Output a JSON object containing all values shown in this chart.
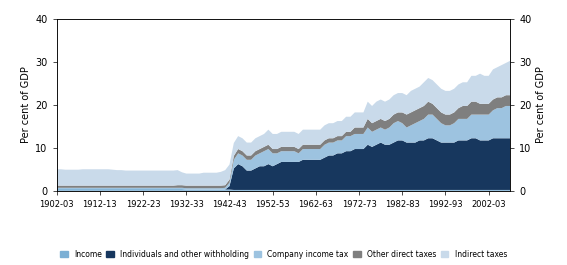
{
  "years": [
    1902,
    1903,
    1904,
    1905,
    1906,
    1907,
    1908,
    1909,
    1910,
    1911,
    1912,
    1913,
    1914,
    1915,
    1916,
    1917,
    1918,
    1919,
    1920,
    1921,
    1922,
    1923,
    1924,
    1925,
    1926,
    1927,
    1928,
    1929,
    1930,
    1931,
    1932,
    1933,
    1934,
    1935,
    1936,
    1937,
    1938,
    1939,
    1940,
    1941,
    1942,
    1943,
    1944,
    1945,
    1946,
    1947,
    1948,
    1949,
    1950,
    1951,
    1952,
    1953,
    1954,
    1955,
    1956,
    1957,
    1958,
    1959,
    1960,
    1961,
    1962,
    1963,
    1964,
    1965,
    1966,
    1967,
    1968,
    1969,
    1970,
    1971,
    1972,
    1973,
    1974,
    1975,
    1976,
    1977,
    1978,
    1979,
    1980,
    1981,
    1982,
    1983,
    1984,
    1985,
    1986,
    1987,
    1988,
    1989,
    1990,
    1991,
    1992,
    1993,
    1994,
    1995,
    1996,
    1997,
    1998,
    1999,
    2000,
    2001,
    2002,
    2003,
    2004,
    2005,
    2006,
    2007
  ],
  "income": [
    0.4,
    0.4,
    0.4,
    0.4,
    0.4,
    0.4,
    0.4,
    0.4,
    0.4,
    0.4,
    0.4,
    0.4,
    0.4,
    0.4,
    0.4,
    0.4,
    0.4,
    0.4,
    0.4,
    0.4,
    0.4,
    0.4,
    0.4,
    0.4,
    0.4,
    0.4,
    0.4,
    0.4,
    0.4,
    0.4,
    0.3,
    0.3,
    0.3,
    0.3,
    0.3,
    0.3,
    0.3,
    0.3,
    0.3,
    0.3,
    0.3,
    0.2,
    0.2,
    0.2,
    0.2,
    0.2,
    0.2,
    0.2,
    0.2,
    0.2,
    0.2,
    0.2,
    0.2,
    0.2,
    0.2,
    0.2,
    0.2,
    0.2,
    0.2,
    0.2,
    0.2,
    0.2,
    0.2,
    0.2,
    0.2,
    0.2,
    0.2,
    0.2,
    0.2,
    0.2,
    0.2,
    0.2,
    0.2,
    0.2,
    0.2,
    0.2,
    0.2,
    0.2,
    0.2,
    0.2,
    0.2,
    0.2,
    0.2,
    0.2,
    0.2,
    0.2,
    0.2,
    0.2,
    0.2,
    0.2,
    0.2,
    0.2,
    0.2,
    0.2,
    0.2,
    0.2,
    0.2,
    0.2,
    0.2,
    0.2,
    0.2,
    0.2,
    0.2,
    0.2,
    0.2,
    0.2
  ],
  "individuals": [
    0.0,
    0.0,
    0.0,
    0.0,
    0.0,
    0.0,
    0.0,
    0.0,
    0.0,
    0.0,
    0.0,
    0.0,
    0.0,
    0.0,
    0.0,
    0.0,
    0.0,
    0.0,
    0.0,
    0.0,
    0.0,
    0.0,
    0.0,
    0.0,
    0.0,
    0.0,
    0.0,
    0.0,
    0.0,
    0.0,
    0.0,
    0.0,
    0.0,
    0.0,
    0.0,
    0.0,
    0.0,
    0.0,
    0.0,
    0.0,
    0.8,
    5.0,
    6.0,
    5.5,
    4.5,
    4.5,
    5.0,
    5.5,
    5.5,
    6.0,
    5.5,
    6.0,
    6.5,
    6.5,
    6.5,
    6.5,
    6.5,
    7.0,
    7.0,
    7.0,
    7.0,
    7.0,
    7.5,
    8.0,
    8.0,
    8.5,
    8.5,
    9.0,
    9.0,
    9.5,
    9.5,
    9.5,
    10.5,
    10.0,
    10.5,
    11.0,
    10.5,
    10.5,
    11.0,
    11.5,
    11.5,
    11.0,
    11.0,
    11.0,
    11.5,
    11.5,
    12.0,
    12.0,
    11.5,
    11.0,
    11.0,
    11.0,
    11.0,
    11.5,
    11.5,
    11.5,
    12.0,
    12.0,
    11.5,
    11.5,
    11.5,
    12.0,
    12.0,
    12.0,
    12.0,
    12.0
  ],
  "company": [
    0.3,
    0.3,
    0.3,
    0.3,
    0.3,
    0.3,
    0.3,
    0.3,
    0.3,
    0.3,
    0.3,
    0.3,
    0.3,
    0.3,
    0.3,
    0.3,
    0.3,
    0.3,
    0.3,
    0.3,
    0.3,
    0.3,
    0.3,
    0.3,
    0.3,
    0.3,
    0.3,
    0.3,
    0.3,
    0.3,
    0.3,
    0.3,
    0.3,
    0.3,
    0.3,
    0.3,
    0.3,
    0.3,
    0.3,
    0.4,
    0.8,
    2.0,
    2.5,
    2.5,
    2.5,
    2.5,
    3.0,
    3.0,
    3.5,
    3.5,
    3.0,
    2.5,
    2.5,
    2.5,
    2.5,
    2.5,
    2.0,
    2.5,
    2.5,
    2.5,
    2.5,
    2.5,
    3.0,
    3.0,
    3.0,
    3.0,
    3.0,
    3.5,
    3.5,
    3.5,
    3.5,
    3.5,
    4.0,
    3.5,
    3.5,
    3.5,
    3.5,
    4.0,
    4.5,
    4.5,
    4.0,
    3.5,
    4.0,
    4.5,
    4.5,
    5.0,
    5.5,
    5.5,
    5.0,
    4.5,
    4.0,
    4.0,
    4.5,
    5.0,
    5.0,
    5.0,
    5.5,
    5.5,
    6.0,
    6.0,
    6.0,
    6.5,
    7.0,
    7.0,
    7.5,
    7.5
  ],
  "other_direct": [
    0.5,
    0.5,
    0.5,
    0.5,
    0.5,
    0.5,
    0.5,
    0.5,
    0.5,
    0.5,
    0.5,
    0.5,
    0.5,
    0.5,
    0.5,
    0.5,
    0.5,
    0.5,
    0.5,
    0.5,
    0.5,
    0.5,
    0.5,
    0.5,
    0.5,
    0.5,
    0.5,
    0.5,
    0.6,
    0.6,
    0.6,
    0.6,
    0.6,
    0.6,
    0.6,
    0.6,
    0.6,
    0.6,
    0.6,
    0.6,
    0.7,
    0.9,
    1.0,
    1.0,
    1.0,
    1.0,
    1.0,
    1.0,
    1.0,
    1.0,
    1.0,
    1.0,
    1.0,
    1.0,
    1.0,
    1.0,
    1.0,
    1.0,
    1.0,
    1.0,
    1.0,
    1.0,
    1.0,
    1.0,
    1.0,
    1.0,
    1.0,
    1.0,
    1.0,
    1.5,
    1.5,
    1.5,
    2.0,
    2.0,
    2.0,
    2.0,
    2.0,
    2.0,
    2.0,
    2.0,
    2.5,
    3.0,
    3.0,
    3.0,
    3.0,
    3.0,
    3.0,
    2.5,
    2.5,
    2.5,
    2.5,
    2.5,
    2.5,
    2.5,
    3.0,
    3.0,
    3.0,
    3.0,
    2.5,
    2.5,
    2.5,
    2.5,
    2.5,
    2.5,
    2.5,
    2.5
  ],
  "indirect": [
    3.8,
    3.8,
    3.7,
    3.7,
    3.7,
    3.7,
    3.8,
    3.8,
    3.8,
    3.8,
    3.8,
    3.8,
    3.8,
    3.7,
    3.6,
    3.6,
    3.5,
    3.5,
    3.5,
    3.5,
    3.5,
    3.5,
    3.5,
    3.5,
    3.5,
    3.5,
    3.5,
    3.5,
    3.5,
    3.0,
    2.8,
    2.8,
    2.8,
    2.8,
    3.0,
    3.0,
    3.0,
    3.0,
    3.2,
    3.5,
    3.5,
    3.0,
    3.0,
    3.0,
    3.0,
    3.0,
    3.0,
    3.0,
    3.0,
    3.5,
    3.5,
    3.5,
    3.5,
    3.5,
    3.5,
    3.5,
    3.5,
    3.5,
    3.5,
    3.5,
    3.5,
    3.5,
    3.5,
    3.5,
    3.5,
    3.5,
    3.5,
    3.5,
    3.5,
    3.5,
    3.5,
    3.5,
    4.0,
    4.0,
    4.5,
    4.5,
    4.5,
    4.5,
    4.5,
    4.5,
    4.5,
    4.5,
    5.0,
    5.0,
    5.0,
    5.5,
    5.5,
    5.5,
    5.5,
    5.5,
    5.5,
    5.5,
    5.5,
    5.5,
    5.5,
    5.5,
    6.0,
    6.0,
    7.0,
    6.5,
    6.5,
    7.0,
    7.0,
    7.5,
    7.5,
    8.0
  ],
  "colors": {
    "income": "#7bafd4",
    "individuals": "#17375e",
    "company": "#9dc3e0",
    "other_direct": "#7f7f7f",
    "indirect": "#c9daea"
  },
  "x_ticks": [
    1902,
    1912,
    1922,
    1932,
    1942,
    1952,
    1962,
    1972,
    1982,
    1992,
    2002
  ],
  "x_tick_labels": [
    "1902-03",
    "1912-13",
    "1922-23",
    "1932-33",
    "1942-43",
    "1952-53",
    "1962-63",
    "1972-73",
    "1982-83",
    "1992-93",
    "2002-03"
  ],
  "y_ticks": [
    0,
    10,
    20,
    30,
    40
  ],
  "ylim": [
    0,
    40
  ],
  "left_ylabel": "Per cent of GDP",
  "right_ylabel": "Per cent of GDP",
  "legend_labels": [
    "Income",
    "Individuals and other withholding",
    "Company income tax",
    "Other direct taxes",
    "Indirect taxes"
  ],
  "legend_colors_order": [
    "income",
    "individuals",
    "company",
    "other_direct",
    "indirect"
  ]
}
